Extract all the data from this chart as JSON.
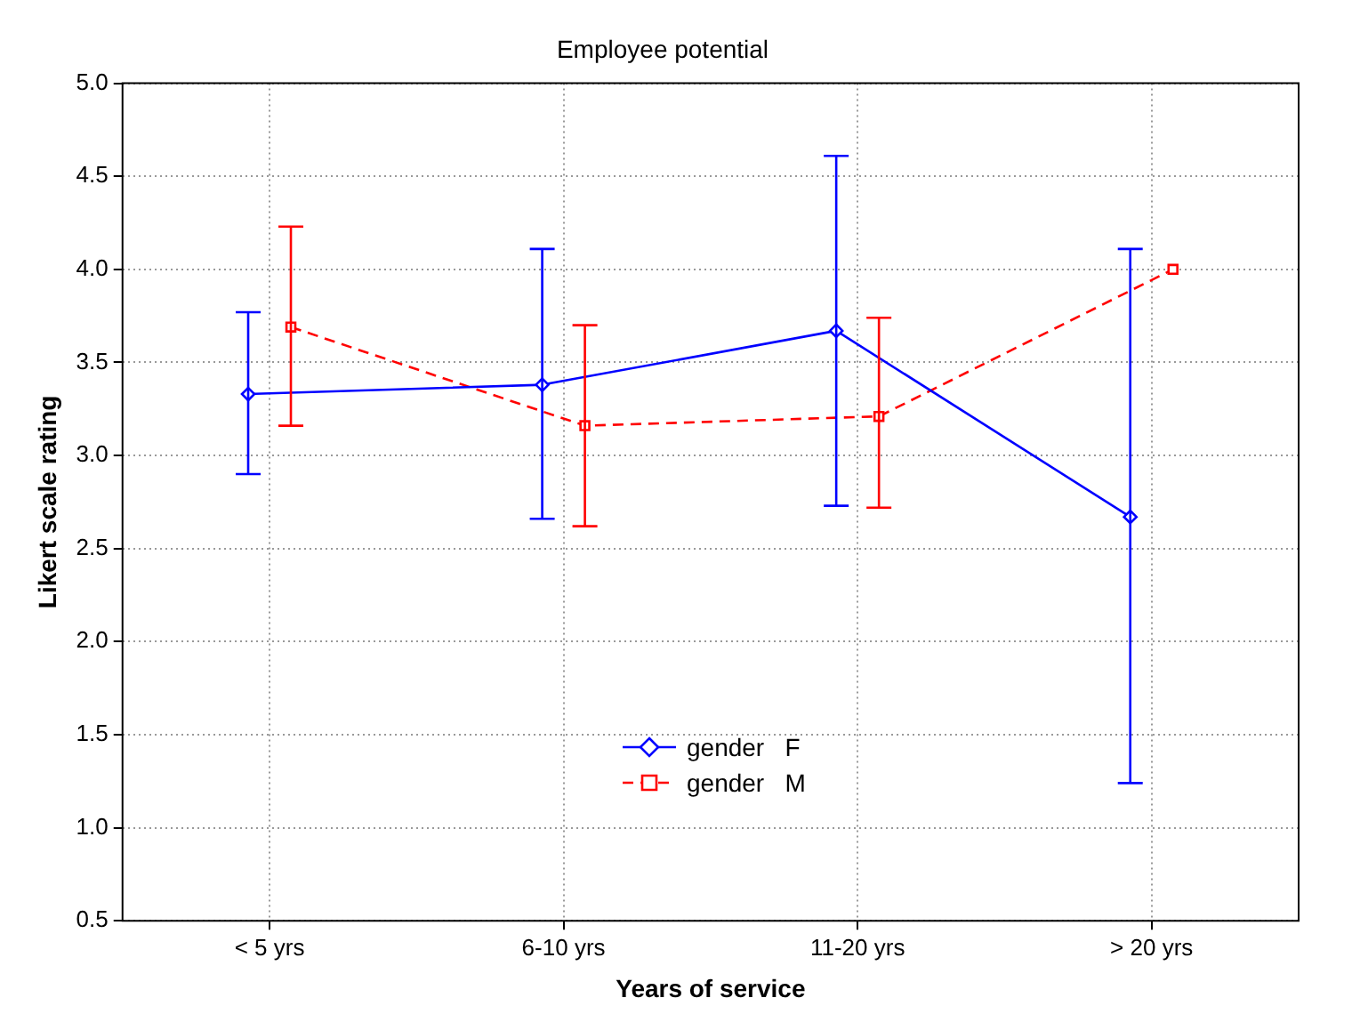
{
  "chart_data": {
    "type": "line",
    "title": "Employee potential",
    "xlabel": "Years of service",
    "ylabel": "Likert scale rating",
    "categories": [
      "< 5 yrs",
      "6-10 yrs",
      "11-20 yrs",
      "> 20 yrs"
    ],
    "ylim": [
      0.5,
      5.0
    ],
    "yticks": [
      {
        "value": 0.5,
        "label": "0.5"
      },
      {
        "value": 1,
        "label": "1.0"
      },
      {
        "value": 1.5,
        "label": "1.5"
      },
      {
        "value": 2,
        "label": "2.0"
      },
      {
        "value": 2.5,
        "label": "2.5"
      },
      {
        "value": 3,
        "label": "3.0"
      },
      {
        "value": 3.5,
        "label": "3.5"
      },
      {
        "value": 4,
        "label": "4.0"
      },
      {
        "value": 4.5,
        "label": "4.5"
      },
      {
        "value": 5,
        "label": "5.0"
      }
    ],
    "grid": true,
    "legend": "bottom",
    "series": [
      {
        "name": "gender   F",
        "color": "#0000ff",
        "marker": "diamond",
        "line_style": "solid",
        "values": [
          3.33,
          3.38,
          3.67,
          2.67
        ],
        "errors": [
          [
            2.9,
            3.77
          ],
          [
            2.66,
            4.11
          ],
          [
            2.73,
            4.61
          ],
          [
            1.24,
            4.11
          ]
        ]
      },
      {
        "name": "gender   M",
        "color": "#ff0000",
        "marker": "square",
        "line_style": "dashed",
        "values": [
          3.69,
          3.16,
          3.21,
          4.0
        ],
        "errors": [
          [
            3.16,
            4.23
          ],
          [
            2.62,
            3.7
          ],
          [
            2.72,
            3.74
          ],
          null
        ]
      }
    ]
  }
}
